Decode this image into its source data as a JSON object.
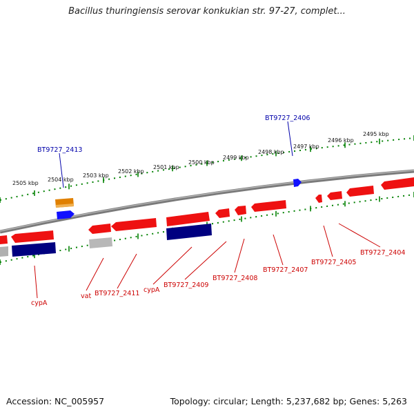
{
  "title": "Bacillus thuringiensis serovar konkukian str. 97-27, complet...",
  "footer": {
    "accession": "Accession: NC_005957",
    "summary": "Topology: circular; Length: 5,237,682 bp; Genes: 5,263"
  },
  "scale_labels": [
    "2505 kbp",
    "2504 kbp",
    "2503 kbp",
    "2502 kbp",
    "2501 kbp",
    "2500 kbp",
    "2499 kbp",
    "2498 kbp",
    "2497 kbp",
    "2496 kbp",
    "2495 kbp"
  ],
  "gene_labels": {
    "top": [
      "BT9727_2413",
      "BT9727_2406"
    ],
    "bottom": [
      "cypA",
      "vat",
      "BT9727_2411",
      "cypA",
      "BT9727_2409",
      "BT9727_2408",
      "BT9727_2407",
      "BT9727_2405",
      "BT9727_2404"
    ]
  },
  "colors": {
    "forward": "#ee1111",
    "reverse": "#000080",
    "rna": "#e08000",
    "highlight": "#1010ff",
    "pseudo": "#b0b0b0",
    "scale": "#008000",
    "backbone": "#808080"
  }
}
